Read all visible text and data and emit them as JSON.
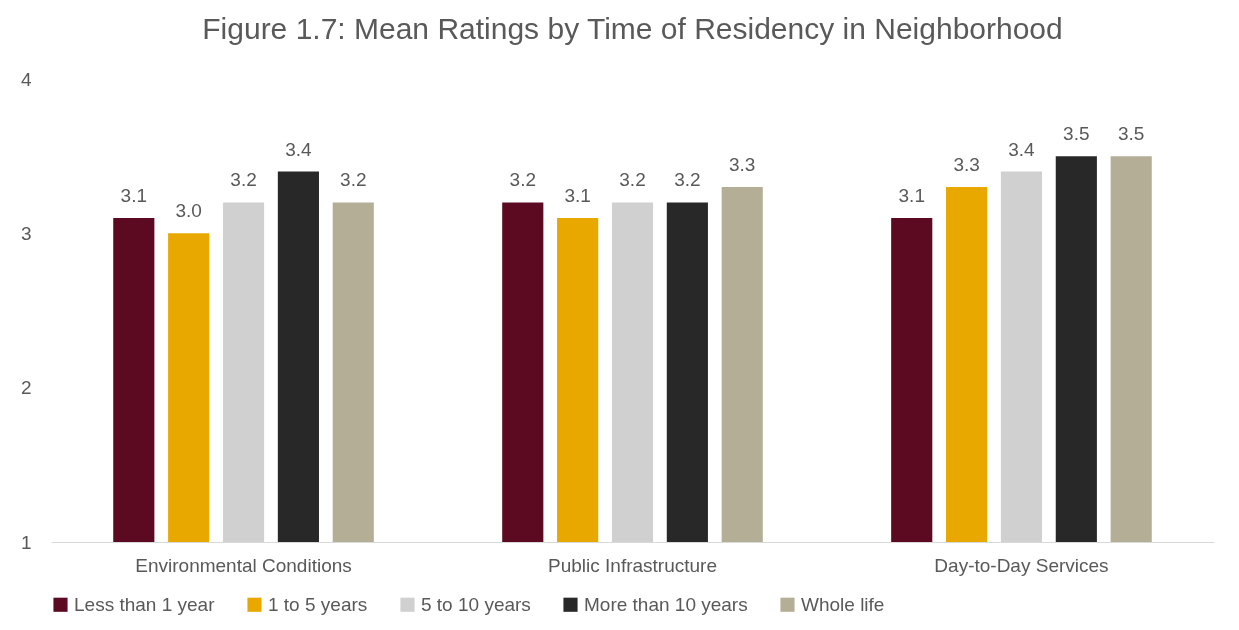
{
  "chart_data": {
    "type": "bar",
    "title": "Figure 1.7: Mean Ratings by Time of Residency in Neighborhood",
    "categories": [
      "Environmental Conditions",
      "Public Infrastructure",
      "Day-to-Day Services"
    ],
    "series": [
      {
        "name": "Less than 1 year",
        "color": "#5c0a21",
        "values": [
          3.1,
          3.2,
          3.1
        ],
        "value_labels": [
          "3.1",
          "3.2",
          "3.1"
        ]
      },
      {
        "name": "1 to 5 years",
        "color": "#e8a800",
        "values": [
          3.0,
          3.1,
          3.3
        ],
        "value_labels": [
          "3.0",
          "3.1",
          "3.3"
        ]
      },
      {
        "name": "5 to 10 years",
        "color": "#d0d0d0",
        "values": [
          3.2,
          3.2,
          3.4
        ],
        "value_labels": [
          "3.2",
          "3.2",
          "3.4"
        ]
      },
      {
        "name": "More than 10 years",
        "color": "#282828",
        "values": [
          3.4,
          3.2,
          3.5
        ],
        "value_labels": [
          "3.4",
          "3.2",
          "3.5"
        ]
      },
      {
        "name": "Whole life",
        "color": "#b5ae96",
        "values": [
          3.2,
          3.3,
          3.5
        ],
        "value_labels": [
          "3.2",
          "3.3",
          "3.5"
        ]
      }
    ],
    "ylim": [
      1,
      4
    ],
    "yticks": [
      1,
      2,
      3,
      4
    ],
    "grid": false,
    "legend": "bottom"
  }
}
